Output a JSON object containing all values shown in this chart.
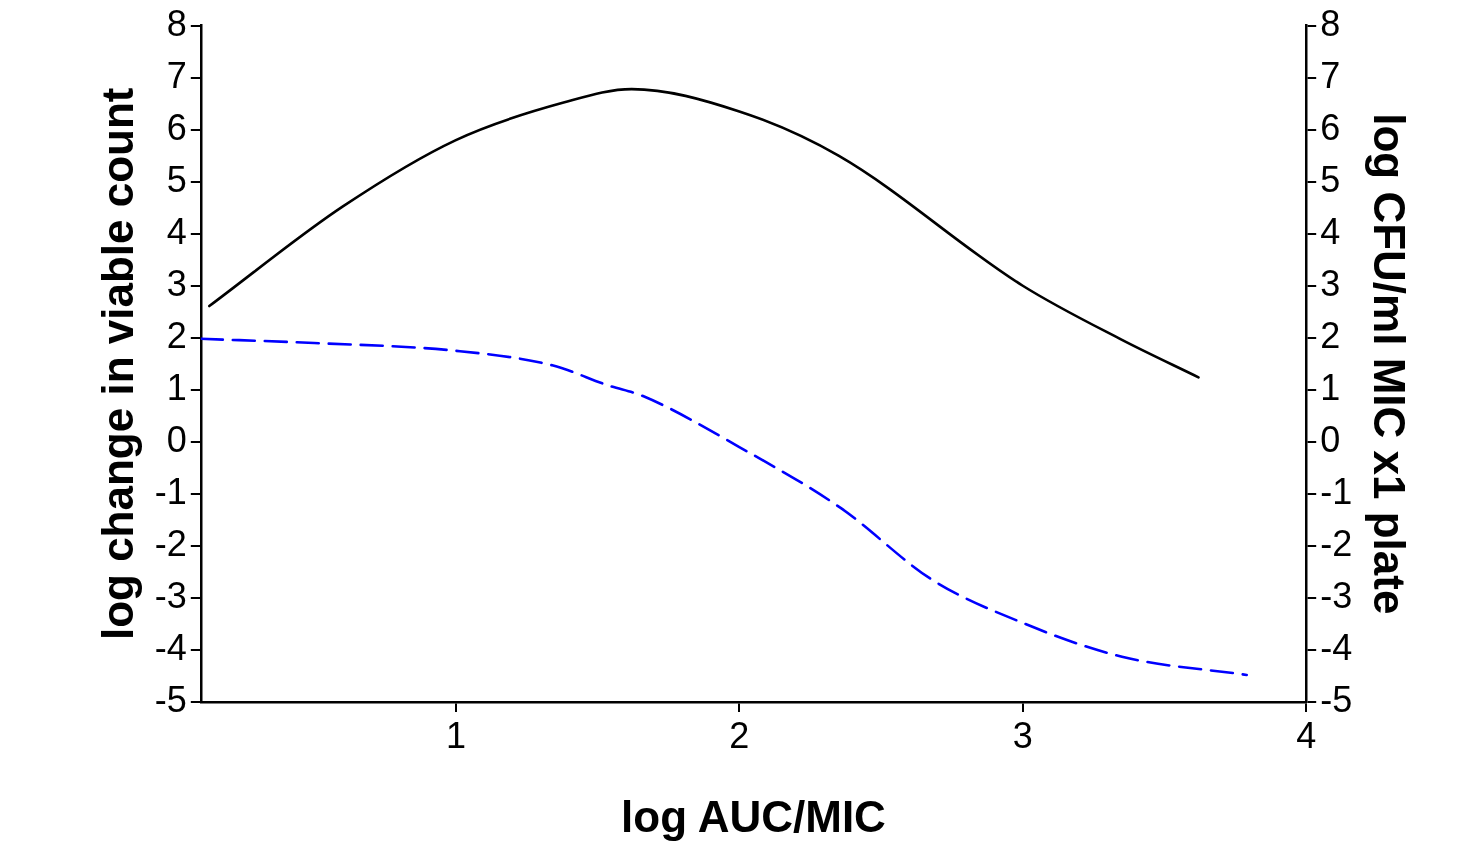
{
  "chart_data": {
    "type": "line",
    "xlabel": "log AUC/MIC",
    "ylabel": "log change in viable count",
    "y2label": "log CFU/ml MIC x1 plate",
    "xlim": [
      0.1,
      4
    ],
    "xticks": [
      1,
      2,
      3,
      4
    ],
    "ylim": [
      -5,
      8
    ],
    "yticks": [
      -5,
      -4,
      -3,
      -2,
      -1,
      0,
      1,
      2,
      3,
      4,
      5,
      6,
      7,
      8
    ],
    "y2lim": [
      -5,
      8
    ],
    "y2ticks": [
      -5,
      -4,
      -3,
      -2,
      -1,
      0,
      1,
      2,
      3,
      4,
      5,
      6,
      7,
      8
    ],
    "grid": false,
    "legend": false,
    "marker": "none",
    "series": [
      {
        "color": "#000000",
        "line_style": "solid",
        "x": [
          0.13,
          0.6,
          1.0,
          1.38,
          1.62,
          2.0,
          2.35,
          3.0,
          3.35,
          3.62
        ],
        "values": [
          2.61,
          4.52,
          5.8,
          6.52,
          6.78,
          6.35,
          5.5,
          3.0,
          1.96,
          1.24
        ]
      },
      {
        "color": "#0000ff",
        "line_style": "dashed",
        "x": [
          0.1,
          0.5,
          1.0,
          1.34,
          1.54,
          1.66,
          2.0,
          2.36,
          2.68,
          3.0,
          3.35,
          3.79
        ],
        "values": [
          1.98,
          1.9,
          1.75,
          1.47,
          1.08,
          0.88,
          -0.1,
          -1.28,
          -2.65,
          -3.48,
          -4.13,
          -4.48
        ]
      }
    ]
  }
}
